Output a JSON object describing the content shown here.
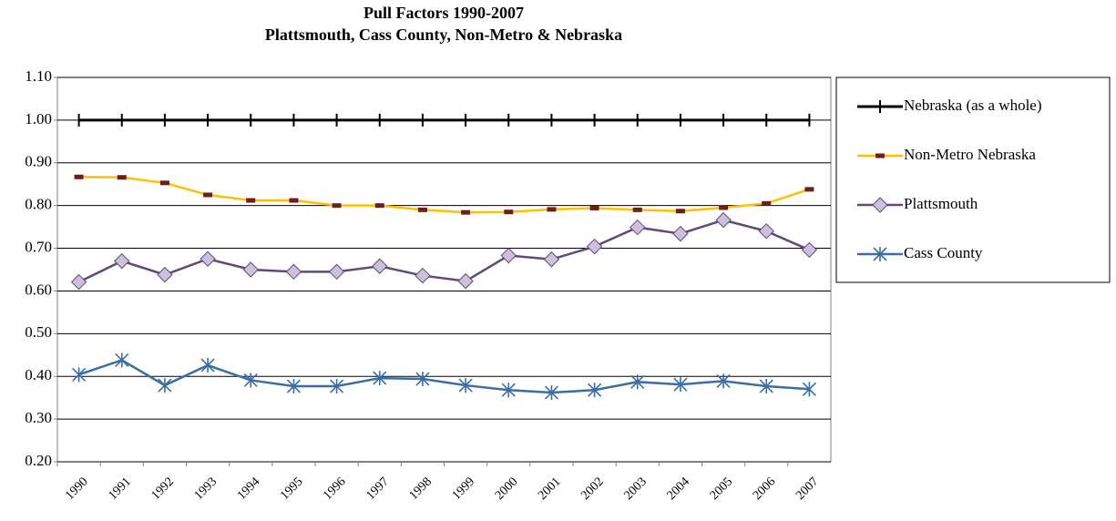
{
  "chart_data": {
    "type": "line",
    "title": "Pull Factors 1990-2007",
    "subtitle": "Plattsmouth, Cass County, Non-Metro & Nebraska",
    "categories": [
      "1990",
      "1991",
      "1992",
      "1993",
      "1994",
      "1995",
      "1996",
      "1997",
      "1998",
      "1999",
      "2000",
      "2001",
      "2002",
      "2003",
      "2004",
      "2005",
      "2006",
      "2007"
    ],
    "series": [
      {
        "name": "Nebraska (as a whole)",
        "color": "#000000",
        "marker": "plus",
        "marker_color": "#000000",
        "values": [
          1.0,
          1.0,
          1.0,
          1.0,
          1.0,
          1.0,
          1.0,
          1.0,
          1.0,
          1.0,
          1.0,
          1.0,
          1.0,
          1.0,
          1.0,
          1.0,
          1.0,
          1.0
        ]
      },
      {
        "name": "Non-Metro Nebraska",
        "color": "#ffc000",
        "marker": "dash",
        "marker_color": "#6b1f1f",
        "values": [
          0.867,
          0.866,
          0.853,
          0.825,
          0.812,
          0.812,
          0.8,
          0.8,
          0.79,
          0.784,
          0.785,
          0.791,
          0.794,
          0.79,
          0.787,
          0.795,
          0.805,
          0.838
        ]
      },
      {
        "name": "Plattsmouth",
        "color": "#604a7b",
        "marker": "diamond",
        "marker_color": "#ccc0da",
        "values": [
          0.621,
          0.67,
          0.638,
          0.675,
          0.65,
          0.645,
          0.645,
          0.658,
          0.636,
          0.623,
          0.683,
          0.674,
          0.704,
          0.749,
          0.734,
          0.766,
          0.74,
          0.696
        ]
      },
      {
        "name": "Cass County",
        "color": "#3a6ea5",
        "marker": "star",
        "marker_color": "#3a6ea5",
        "values": [
          0.404,
          0.438,
          0.379,
          0.426,
          0.391,
          0.377,
          0.377,
          0.396,
          0.394,
          0.379,
          0.368,
          0.362,
          0.368,
          0.387,
          0.381,
          0.389,
          0.377,
          0.37
        ]
      }
    ],
    "ylim": [
      0.2,
      1.1
    ],
    "yticks": [
      {
        "value": 0.2,
        "label": "0.20"
      },
      {
        "value": 0.3,
        "label": "0.30"
      },
      {
        "value": 0.4,
        "label": "0.40"
      },
      {
        "value": 0.5,
        "label": "0.50"
      },
      {
        "value": 0.6,
        "label": "0.60"
      },
      {
        "value": 0.7,
        "label": "0.70"
      },
      {
        "value": 0.8,
        "label": "0.80"
      },
      {
        "value": 0.9,
        "label": "0.90"
      },
      {
        "value": 1.0,
        "label": "1.00"
      },
      {
        "value": 1.1,
        "label": "1.10"
      }
    ],
    "grid": true,
    "legend": "right"
  }
}
